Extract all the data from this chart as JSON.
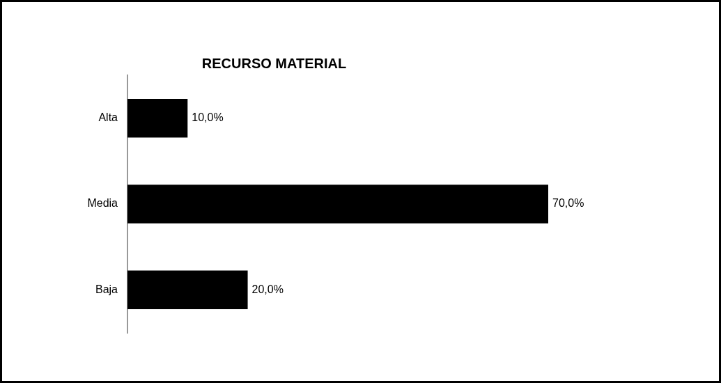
{
  "chart_data": {
    "type": "bar",
    "orientation": "horizontal",
    "title": "RECURSO MATERIAL",
    "categories": [
      "Alta",
      "Media",
      "Baja"
    ],
    "values": [
      10,
      70,
      20
    ],
    "value_labels": [
      "10,0%",
      "70,0%",
      "20,0%"
    ],
    "color": "#000000",
    "tick_labels": "y",
    "grid": false,
    "legend": false
  }
}
